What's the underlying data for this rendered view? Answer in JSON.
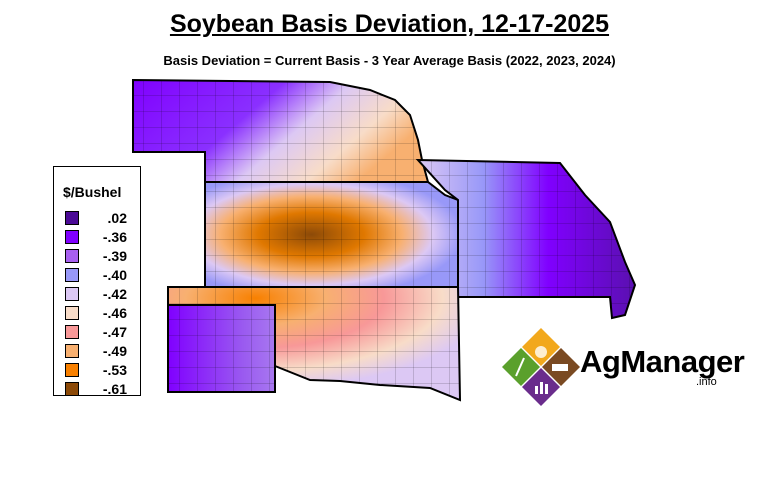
{
  "title": "Soybean Basis Deviation, 12-17-2025",
  "subtitle": "Basis Deviation = Current Basis - 3 Year Average Basis (2022, 2023, 2024)",
  "legend": {
    "title": "$/Bushel",
    "items": [
      {
        "label": ".02",
        "color": "#4b0a96"
      },
      {
        "label": "-.36",
        "color": "#8000ff"
      },
      {
        "label": "-.39",
        "color": "#a860f0"
      },
      {
        "label": "-.40",
        "color": "#9898f8"
      },
      {
        "label": "-.42",
        "color": "#dcc8f4"
      },
      {
        "label": "-.46",
        "color": "#f8dcc8"
      },
      {
        "label": "-.47",
        "color": "#f89898"
      },
      {
        "label": "-.49",
        "color": "#f8b070"
      },
      {
        "label": "-.53",
        "color": "#f88000"
      },
      {
        "label": "-.61",
        "color": "#8c4a08"
      }
    ]
  },
  "logo": {
    "name": "AgManager",
    "suffix": ".info"
  }
}
